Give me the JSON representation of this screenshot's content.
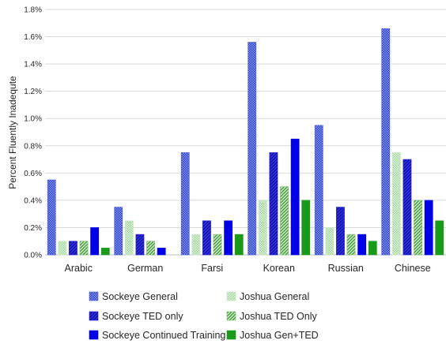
{
  "chart_data": {
    "type": "bar",
    "title": "",
    "xlabel": "",
    "ylabel": "Percent Fluently Inadequte",
    "ylim": [
      0,
      1.8
    ],
    "y_ticks": [
      "0.0%",
      "0.2%",
      "0.4%",
      "0.6%",
      "0.8%",
      "1.0%",
      "1.2%",
      "1.4%",
      "1.6%",
      "1.8%"
    ],
    "grid": "horizontal",
    "legend_position": "bottom",
    "categories": [
      "Arabic",
      "German",
      "Farsi",
      "Korean",
      "Russian",
      "Chinese"
    ],
    "series": [
      {
        "name": "Sockeye General",
        "values": [
          0.55,
          0.35,
          0.75,
          1.56,
          0.95,
          1.66
        ],
        "color": "#4a5fd8",
        "pattern": "dense-dots"
      },
      {
        "name": "Joshua General",
        "values": [
          0.1,
          0.25,
          0.15,
          0.4,
          0.2,
          0.75
        ],
        "color": "#c8e8c4",
        "pattern": "light-dots"
      },
      {
        "name": "Sockeye TED only",
        "values": [
          0.1,
          0.15,
          0.25,
          0.75,
          0.35,
          0.7
        ],
        "color": "#1f1fd6",
        "pattern": "diagonal"
      },
      {
        "name": "Joshua TED Only",
        "values": [
          0.1,
          0.1,
          0.15,
          0.5,
          0.15,
          0.4
        ],
        "color": "#7cbf6c",
        "pattern": "diagonal-light"
      },
      {
        "name": "Sockeye Continued Training",
        "values": [
          0.2,
          0.05,
          0.25,
          0.85,
          0.15,
          0.4
        ],
        "color": "#0000e6",
        "pattern": "solid"
      },
      {
        "name": "Joshua Gen+TED",
        "values": [
          0.05,
          0.0,
          0.15,
          0.4,
          0.1,
          0.25
        ],
        "color": "#1a9a1a",
        "pattern": "solid"
      }
    ]
  }
}
